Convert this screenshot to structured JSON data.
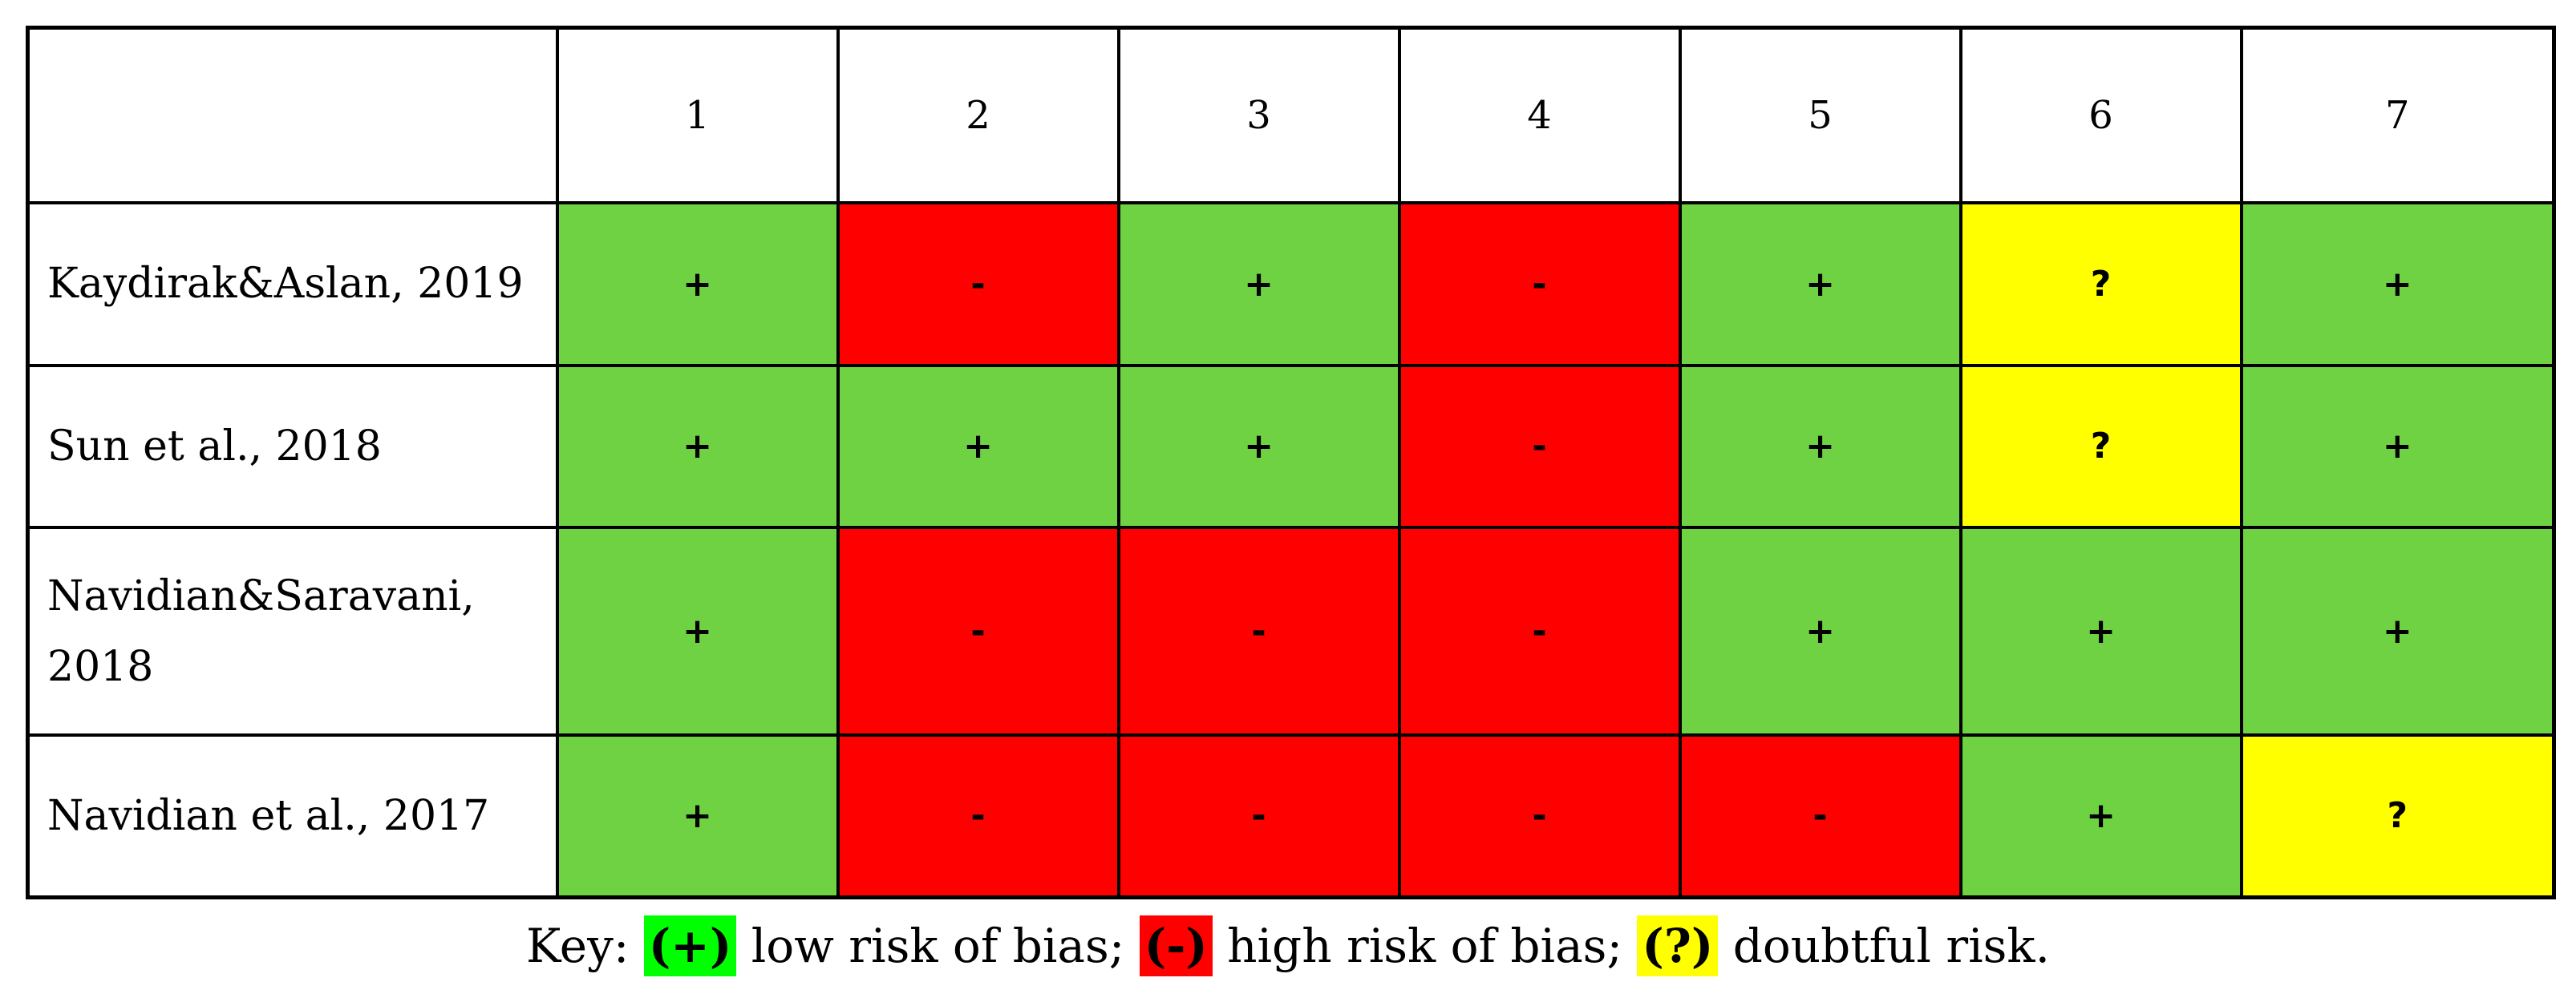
{
  "table": {
    "columns": [
      "",
      "1",
      "2",
      "3",
      "4",
      "5",
      "6",
      "7"
    ],
    "rows": [
      {
        "study": "Kaydirak&Aslan, 2019",
        "ratings": [
          "+",
          "-",
          "+",
          "-",
          "+",
          "?",
          "+"
        ]
      },
      {
        "study": "Sun et al., 2018",
        "ratings": [
          "+",
          "+",
          "+",
          "-",
          "+",
          "?",
          "+"
        ]
      },
      {
        "study": "Navidian&Saravani, 2018",
        "ratings": [
          "+",
          "-",
          "-",
          "-",
          "+",
          "+",
          "+"
        ]
      },
      {
        "study": "Navidian et al., 2017",
        "ratings": [
          "+",
          "-",
          "-",
          "-",
          "-",
          "+",
          "?"
        ]
      }
    ]
  },
  "rating_colors": {
    "+": "#6fd242",
    "-": "#ff0000",
    "?": "#ffff00"
  },
  "key": {
    "prefix": "Key: ",
    "items": [
      {
        "symbol": "(+)",
        "text": " low risk of bias; ",
        "color": "#00ff00"
      },
      {
        "symbol": "(-)",
        "text": " high risk of bias; ",
        "color": "#ff0000"
      },
      {
        "symbol": "(?)",
        "text": " doubtful risk.",
        "color": "#ffff00"
      }
    ]
  }
}
